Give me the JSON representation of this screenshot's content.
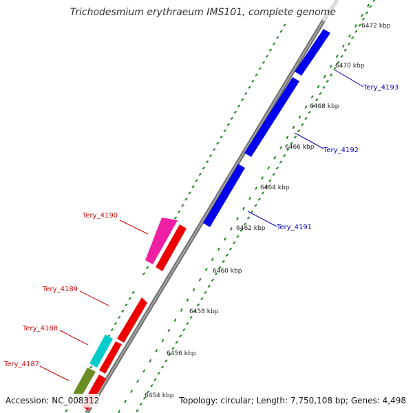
{
  "title": "Trichodesmium erythraeum IMS101, complete genome",
  "footer": {
    "accession": "Accession: NC_008312",
    "topology": "Topology: circular; Length: 7,750,108 bp; Genes: 4,498"
  },
  "colors": {
    "backbone": "#8c8c8c",
    "ticks": "#1f8a1f",
    "reverse_label": "#cc0000",
    "forward_label": "#0000b4"
  },
  "ruler": [
    {
      "label": "6454 kbp"
    },
    {
      "label": "6456 kbp"
    },
    {
      "label": "6458 kbp"
    },
    {
      "label": "6460 kbp"
    },
    {
      "label": "6462 kbp"
    },
    {
      "label": "6464 kbp"
    },
    {
      "label": "6466 kbp"
    },
    {
      "label": "6468 kbp"
    },
    {
      "label": "6470 kbp"
    },
    {
      "label": "6472 kbp"
    }
  ],
  "gene_labels": [
    {
      "name": "Tery_4187"
    },
    {
      "name": "Tery_4188"
    },
    {
      "name": "Tery_4189"
    },
    {
      "name": "Tery_4190"
    },
    {
      "name": "Tery_4191"
    },
    {
      "name": "Tery_4192"
    },
    {
      "name": "Tery_4193"
    }
  ]
}
